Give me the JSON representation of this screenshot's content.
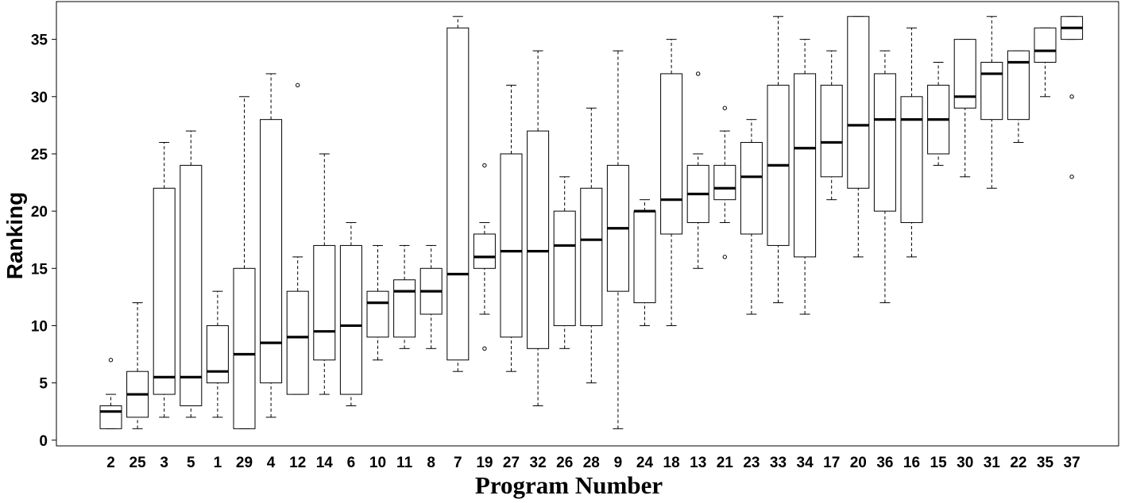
{
  "chart_data": {
    "type": "boxplot",
    "title": "",
    "xlabel": "Program Number",
    "ylabel": "Ranking",
    "ylim": [
      -0.5,
      38.3
    ],
    "yticks": [
      0,
      5,
      10,
      15,
      20,
      25,
      30,
      35
    ],
    "grid": false,
    "categories": [
      "2",
      "25",
      "3",
      "5",
      "1",
      "29",
      "4",
      "12",
      "14",
      "6",
      "10",
      "11",
      "8",
      "7",
      "19",
      "27",
      "32",
      "26",
      "28",
      "9",
      "24",
      "18",
      "13",
      "21",
      "23",
      "33",
      "34",
      "17",
      "20",
      "36",
      "16",
      "15",
      "30",
      "31",
      "22",
      "35",
      "37"
    ],
    "boxes": [
      {
        "label": "2",
        "whisker_low": 1,
        "q1": 1,
        "median": 2.5,
        "q3": 3,
        "whisker_high": 4,
        "outliers": [
          7
        ]
      },
      {
        "label": "25",
        "whisker_low": 1,
        "q1": 2,
        "median": 4,
        "q3": 6,
        "whisker_high": 12,
        "outliers": []
      },
      {
        "label": "3",
        "whisker_low": 2,
        "q1": 4,
        "median": 5.5,
        "q3": 22,
        "whisker_high": 26,
        "outliers": []
      },
      {
        "label": "5",
        "whisker_low": 2,
        "q1": 3,
        "median": 5.5,
        "q3": 24,
        "whisker_high": 27,
        "outliers": []
      },
      {
        "label": "1",
        "whisker_low": 2,
        "q1": 5,
        "median": 6,
        "q3": 10,
        "whisker_high": 13,
        "outliers": []
      },
      {
        "label": "29",
        "whisker_low": 1,
        "q1": 1,
        "median": 7.5,
        "q3": 15,
        "whisker_high": 30,
        "outliers": []
      },
      {
        "label": "4",
        "whisker_low": 2,
        "q1": 5,
        "median": 8.5,
        "q3": 28,
        "whisker_high": 32,
        "outliers": []
      },
      {
        "label": "12",
        "whisker_low": 4,
        "q1": 4,
        "median": 9,
        "q3": 13,
        "whisker_high": 16,
        "outliers": [
          31
        ]
      },
      {
        "label": "14",
        "whisker_low": 4,
        "q1": 7,
        "median": 9.5,
        "q3": 17,
        "whisker_high": 25,
        "outliers": []
      },
      {
        "label": "6",
        "whisker_low": 3,
        "q1": 4,
        "median": 10,
        "q3": 17,
        "whisker_high": 19,
        "outliers": []
      },
      {
        "label": "10",
        "whisker_low": 7,
        "q1": 9,
        "median": 12,
        "q3": 13,
        "whisker_high": 17,
        "outliers": []
      },
      {
        "label": "11",
        "whisker_low": 8,
        "q1": 9,
        "median": 13,
        "q3": 14,
        "whisker_high": 17,
        "outliers": []
      },
      {
        "label": "8",
        "whisker_low": 8,
        "q1": 11,
        "median": 13,
        "q3": 15,
        "whisker_high": 17,
        "outliers": []
      },
      {
        "label": "7",
        "whisker_low": 6,
        "q1": 7,
        "median": 14.5,
        "q3": 36,
        "whisker_high": 37,
        "outliers": []
      },
      {
        "label": "19",
        "whisker_low": 11,
        "q1": 15,
        "median": 16,
        "q3": 18,
        "whisker_high": 19,
        "outliers": [
          8,
          24
        ]
      },
      {
        "label": "27",
        "whisker_low": 6,
        "q1": 9,
        "median": 16.5,
        "q3": 25,
        "whisker_high": 31,
        "outliers": []
      },
      {
        "label": "32",
        "whisker_low": 3,
        "q1": 8,
        "median": 16.5,
        "q3": 27,
        "whisker_high": 34,
        "outliers": []
      },
      {
        "label": "26",
        "whisker_low": 8,
        "q1": 10,
        "median": 17,
        "q3": 20,
        "whisker_high": 23,
        "outliers": []
      },
      {
        "label": "28",
        "whisker_low": 5,
        "q1": 10,
        "median": 17.5,
        "q3": 22,
        "whisker_high": 29,
        "outliers": []
      },
      {
        "label": "9",
        "whisker_low": 1,
        "q1": 13,
        "median": 18.5,
        "q3": 24,
        "whisker_high": 34,
        "outliers": []
      },
      {
        "label": "24",
        "whisker_low": 10,
        "q1": 12,
        "median": 20,
        "q3": 20,
        "whisker_high": 21,
        "outliers": []
      },
      {
        "label": "18",
        "whisker_low": 10,
        "q1": 18,
        "median": 21,
        "q3": 32,
        "whisker_high": 35,
        "outliers": []
      },
      {
        "label": "13",
        "whisker_low": 15,
        "q1": 19,
        "median": 21.5,
        "q3": 24,
        "whisker_high": 25,
        "outliers": [
          32
        ]
      },
      {
        "label": "21",
        "whisker_low": 19,
        "q1": 21,
        "median": 22,
        "q3": 24,
        "whisker_high": 27,
        "outliers": [
          16,
          29
        ]
      },
      {
        "label": "23",
        "whisker_low": 11,
        "q1": 18,
        "median": 23,
        "q3": 26,
        "whisker_high": 28,
        "outliers": []
      },
      {
        "label": "33",
        "whisker_low": 12,
        "q1": 17,
        "median": 24,
        "q3": 31,
        "whisker_high": 37,
        "outliers": []
      },
      {
        "label": "34",
        "whisker_low": 11,
        "q1": 16,
        "median": 25.5,
        "q3": 32,
        "whisker_high": 35,
        "outliers": []
      },
      {
        "label": "17",
        "whisker_low": 21,
        "q1": 23,
        "median": 26,
        "q3": 31,
        "whisker_high": 34,
        "outliers": []
      },
      {
        "label": "20",
        "whisker_low": 16,
        "q1": 22,
        "median": 27.5,
        "q3": 37,
        "whisker_high": 37,
        "outliers": []
      },
      {
        "label": "36",
        "whisker_low": 12,
        "q1": 20,
        "median": 28,
        "q3": 32,
        "whisker_high": 34,
        "outliers": []
      },
      {
        "label": "16",
        "whisker_low": 16,
        "q1": 19,
        "median": 28,
        "q3": 30,
        "whisker_high": 36,
        "outliers": []
      },
      {
        "label": "15",
        "whisker_low": 24,
        "q1": 25,
        "median": 28,
        "q3": 31,
        "whisker_high": 33,
        "outliers": []
      },
      {
        "label": "30",
        "whisker_low": 23,
        "q1": 29,
        "median": 30,
        "q3": 35,
        "whisker_high": 35,
        "outliers": []
      },
      {
        "label": "31",
        "whisker_low": 22,
        "q1": 28,
        "median": 32,
        "q3": 33,
        "whisker_high": 37,
        "outliers": []
      },
      {
        "label": "22",
        "whisker_low": 26,
        "q1": 28,
        "median": 33,
        "q3": 34,
        "whisker_high": 34,
        "outliers": []
      },
      {
        "label": "35",
        "whisker_low": 30,
        "q1": 33,
        "median": 34,
        "q3": 36,
        "whisker_high": 36,
        "outliers": []
      },
      {
        "label": "37",
        "whisker_low": 35,
        "q1": 35,
        "median": 36,
        "q3": 37,
        "whisker_high": 37,
        "outliers": [
          23,
          30
        ]
      }
    ]
  }
}
